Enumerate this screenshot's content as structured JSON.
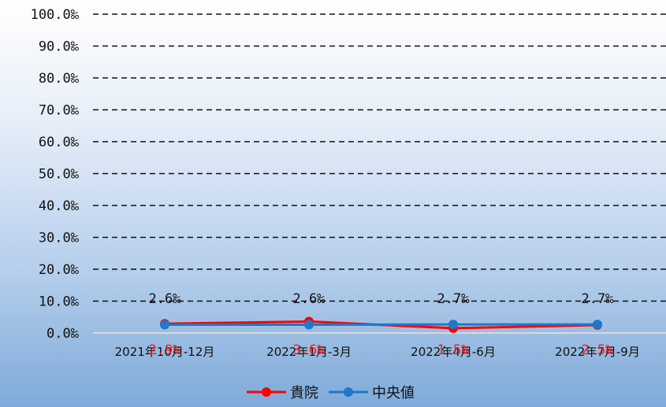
{
  "chart_data": {
    "type": "line",
    "categories": [
      "2021年10月-12月",
      "2022年1月-3月",
      "2022年4月-6月",
      "2022年7月-9月"
    ],
    "ylim": [
      0,
      100
    ],
    "yticks": [
      "0.0‰",
      "10.0‰",
      "20.0‰",
      "30.0‰",
      "40.0‰",
      "50.0‰",
      "60.0‰",
      "70.0‰",
      "80.0‰",
      "90.0‰",
      "100.0‰"
    ],
    "grid": true,
    "legend_position": "bottom",
    "series": [
      {
        "name": "貴院",
        "color": "#ff0000",
        "values": [
          2.9,
          3.6,
          1.5,
          2.5
        ],
        "labels": [
          "2.9‰",
          "3.6‰",
          "1.5‰",
          "2.5‰"
        ]
      },
      {
        "name": "中央値",
        "color": "#1f78c8",
        "values": [
          2.6,
          2.6,
          2.7,
          2.7
        ],
        "labels": [
          "2.6‰",
          "2.6‰",
          "2.7‰",
          "2.7‰"
        ]
      }
    ]
  }
}
